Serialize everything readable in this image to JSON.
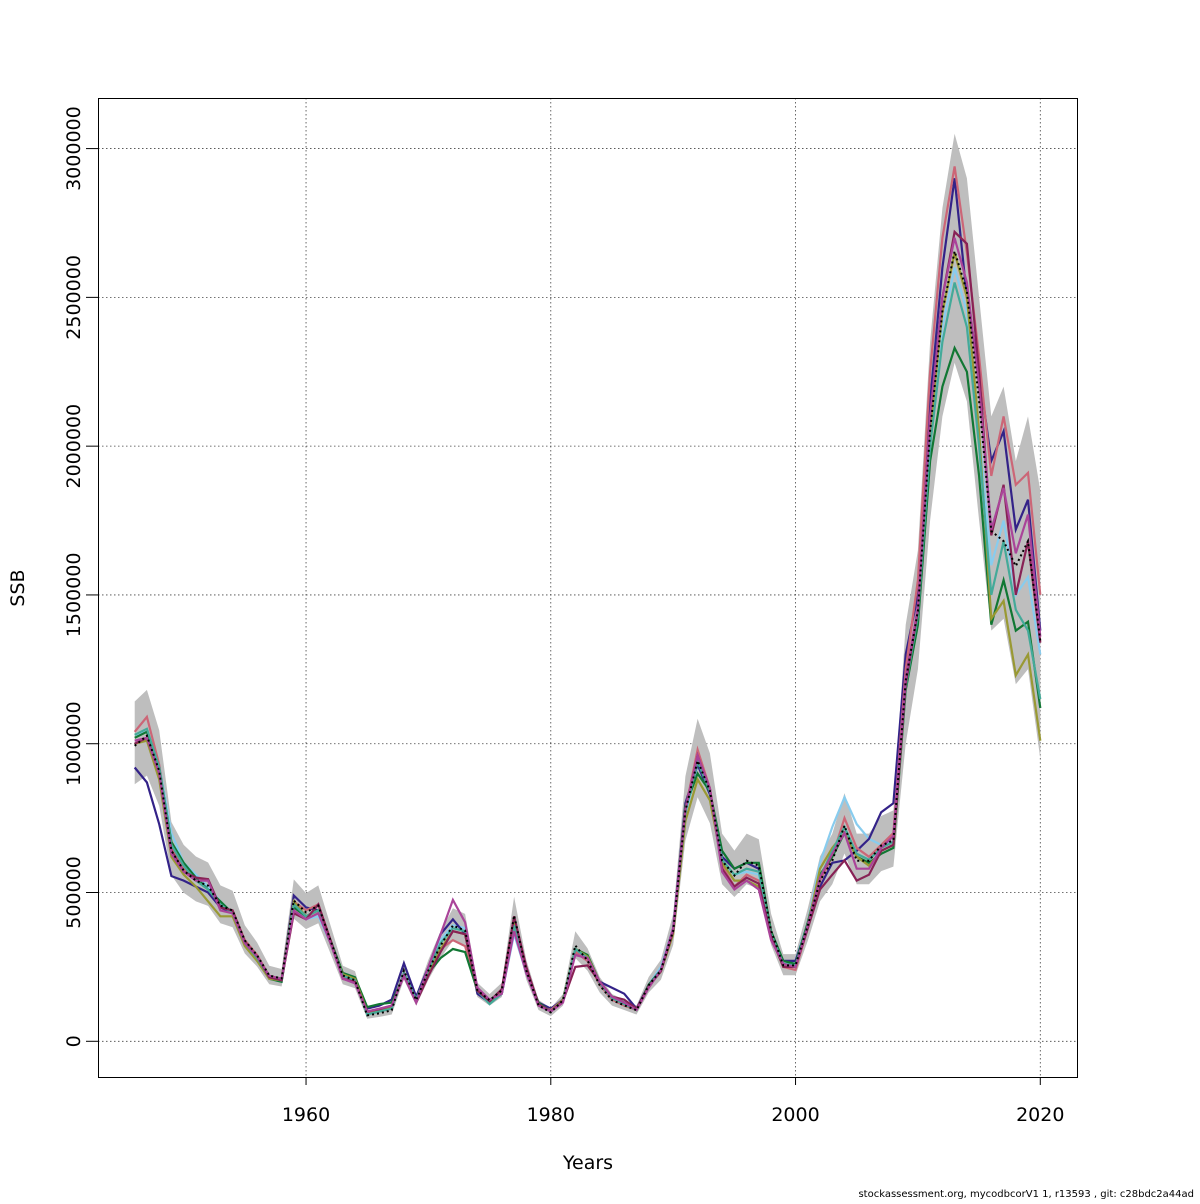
{
  "chart_data": {
    "type": "line",
    "title": "",
    "xlabel": "Years",
    "ylabel": "SSB",
    "xlim": [
      1943,
      2023
    ],
    "ylim": [
      -120000,
      3170000
    ],
    "x_ticks": [
      1960,
      1980,
      2000,
      2020
    ],
    "x_tick_labels": [
      "1960",
      "1980",
      "2000",
      "2020"
    ],
    "y_ticks": [
      0,
      500000,
      1000000,
      1500000,
      2000000,
      2500000,
      3000000
    ],
    "y_tick_labels": [
      "0",
      "500000",
      "1000000",
      "1500000",
      "2000000",
      "2500000",
      "3000000"
    ],
    "grid": true,
    "ci_color": "#bebebe",
    "x_start": 1946,
    "x_end": 2020,
    "main": {
      "color": "#000000",
      "style": "dotted",
      "values": [
        993000,
        1027000,
        909000,
        641000,
        574000,
        540000,
        523000,
        456000,
        440000,
        339000,
        289000,
        221000,
        211000,
        473000,
        433000,
        456000,
        339000,
        221000,
        205000,
        87000,
        94000,
        104000,
        238000,
        138000,
        238000,
        322000,
        389000,
        372000,
        171000,
        138000,
        171000,
        423000,
        238000,
        121000,
        97000,
        138000,
        322000,
        272000,
        188000,
        138000,
        121000,
        104000,
        188000,
        238000,
        372000,
        775000,
        943000,
        842000,
        607000,
        557000,
        607000,
        590000,
        372000,
        255000,
        255000,
        389000,
        540000,
        607000,
        725000,
        607000,
        607000,
        658000,
        675000,
        1212000,
        1446000,
        2051000,
        2453000,
        2655000,
        2520000,
        2151000,
        1715000,
        1681000,
        1597000,
        1681000,
        1346000
      ]
    },
    "ci_low": [
      864000,
      893000,
      791000,
      558000,
      499000,
      470000,
      455000,
      397000,
      383000,
      295000,
      251000,
      192000,
      184000,
      412000,
      377000,
      397000,
      295000,
      192000,
      178000,
      76000,
      82000,
      90000,
      207000,
      120000,
      207000,
      280000,
      338000,
      324000,
      149000,
      120000,
      149000,
      368000,
      207000,
      105000,
      84000,
      120000,
      280000,
      237000,
      164000,
      120000,
      105000,
      90000,
      164000,
      207000,
      324000,
      674000,
      820000,
      733000,
      528000,
      485000,
      528000,
      513000,
      324000,
      222000,
      222000,
      338000,
      470000,
      528000,
      631000,
      528000,
      528000,
      572000,
      587000,
      1000000,
      1250000,
      1750000,
      2100000,
      2280000,
      2150000,
      1750000,
      1380000,
      1420000,
      1200000,
      1250000,
      950000
    ],
    "ci_high": [
      1142000,
      1181000,
      1045000,
      737000,
      660000,
      621000,
      601000,
      524000,
      506000,
      390000,
      332000,
      254000,
      243000,
      544000,
      498000,
      524000,
      390000,
      254000,
      236000,
      100000,
      108000,
      120000,
      274000,
      159000,
      274000,
      370000,
      447000,
      428000,
      197000,
      159000,
      197000,
      486000,
      274000,
      139000,
      112000,
      159000,
      370000,
      313000,
      216000,
      159000,
      139000,
      120000,
      216000,
      274000,
      428000,
      891000,
      1084000,
      968000,
      698000,
      641000,
      698000,
      679000,
      428000,
      293000,
      293000,
      447000,
      621000,
      698000,
      834000,
      698000,
      698000,
      757000,
      776000,
      1400000,
      1650000,
      2350000,
      2800000,
      3050000,
      2900000,
      2500000,
      2100000,
      2200000,
      1950000,
      2100000,
      1850000
    ],
    "series": [
      {
        "color": "#88ccee",
        "values": [
          1030000,
          1040000,
          930000,
          700000,
          600000,
          560000,
          520000,
          470000,
          430000,
          340000,
          280000,
          210000,
          200000,
          460000,
          410000,
          420000,
          330000,
          220000,
          210000,
          95000,
          105000,
          115000,
          230000,
          140000,
          250000,
          340000,
          390000,
          380000,
          170000,
          130000,
          160000,
          360000,
          230000,
          130000,
          100000,
          140000,
          300000,
          280000,
          200000,
          150000,
          130000,
          105000,
          190000,
          250000,
          380000,
          760000,
          930000,
          830000,
          600000,
          560000,
          570000,
          560000,
          360000,
          260000,
          270000,
          400000,
          600000,
          720000,
          820000,
          730000,
          680000,
          660000,
          670000,
          1190000,
          1430000,
          2000000,
          2400000,
          2600000,
          2450000,
          2050000,
          1600000,
          1750000,
          1500000,
          1560000,
          1300000
        ]
      },
      {
        "color": "#332288",
        "values": [
          920000,
          870000,
          730000,
          555000,
          540000,
          520000,
          500000,
          450000,
          430000,
          330000,
          280000,
          215000,
          205000,
          490000,
          450000,
          440000,
          330000,
          220000,
          200000,
          110000,
          120000,
          140000,
          262000,
          150000,
          250000,
          360000,
          410000,
          360000,
          160000,
          130000,
          160000,
          380000,
          230000,
          130000,
          110000,
          140000,
          300000,
          270000,
          200000,
          180000,
          160000,
          110000,
          190000,
          240000,
          380000,
          800000,
          930000,
          830000,
          620000,
          580000,
          600000,
          580000,
          360000,
          270000,
          270000,
          390000,
          520000,
          600000,
          608000,
          640000,
          680000,
          770000,
          800000,
          1300000,
          1500000,
          2150000,
          2600000,
          2900000,
          2500000,
          2250000,
          1950000,
          2050000,
          1720000,
          1820000,
          1380000
        ]
      },
      {
        "color": "#cc6677",
        "values": [
          1040000,
          1090000,
          930000,
          650000,
          580000,
          550000,
          540000,
          450000,
          440000,
          340000,
          290000,
          220000,
          210000,
          470000,
          440000,
          460000,
          340000,
          215000,
          200000,
          95000,
          100000,
          110000,
          230000,
          140000,
          240000,
          310000,
          340000,
          320000,
          170000,
          130000,
          170000,
          380000,
          240000,
          120000,
          105000,
          140000,
          300000,
          270000,
          190000,
          140000,
          120000,
          105000,
          180000,
          240000,
          370000,
          780000,
          980000,
          850000,
          590000,
          520000,
          560000,
          540000,
          360000,
          250000,
          240000,
          380000,
          540000,
          620000,
          750000,
          650000,
          620000,
          660000,
          700000,
          1250000,
          1550000,
          2250000,
          2700000,
          2940000,
          2650000,
          2300000,
          1900000,
          2100000,
          1870000,
          1910000,
          1500000
        ]
      },
      {
        "color": "#117733",
        "values": [
          1020000,
          1040000,
          920000,
          670000,
          600000,
          550000,
          510000,
          470000,
          430000,
          330000,
          280000,
          210000,
          200000,
          450000,
          420000,
          440000,
          340000,
          230000,
          215000,
          115000,
          125000,
          130000,
          220000,
          140000,
          230000,
          280000,
          310000,
          300000,
          170000,
          130000,
          170000,
          400000,
          240000,
          130000,
          100000,
          140000,
          310000,
          290000,
          200000,
          150000,
          130000,
          105000,
          190000,
          240000,
          370000,
          790000,
          900000,
          840000,
          640000,
          580000,
          600000,
          600000,
          370000,
          270000,
          260000,
          400000,
          560000,
          620000,
          700000,
          620000,
          600000,
          630000,
          650000,
          1180000,
          1400000,
          1950000,
          2200000,
          2330000,
          2250000,
          1900000,
          1400000,
          1550000,
          1380000,
          1410000,
          1120000
        ]
      },
      {
        "color": "#999933",
        "values": [
          1000000,
          1010000,
          880000,
          620000,
          560000,
          520000,
          470000,
          420000,
          420000,
          320000,
          270000,
          210000,
          205000,
          470000,
          420000,
          440000,
          330000,
          225000,
          210000,
          100000,
          105000,
          115000,
          225000,
          135000,
          230000,
          310000,
          370000,
          360000,
          170000,
          135000,
          170000,
          410000,
          245000,
          125000,
          100000,
          140000,
          310000,
          285000,
          200000,
          150000,
          125000,
          105000,
          185000,
          235000,
          360000,
          740000,
          880000,
          810000,
          600000,
          540000,
          540000,
          520000,
          350000,
          250000,
          250000,
          390000,
          580000,
          650000,
          700000,
          620000,
          590000,
          640000,
          660000,
          1200000,
          1450000,
          2050000,
          2450000,
          2650000,
          2500000,
          2050000,
          1420000,
          1480000,
          1230000,
          1300000,
          1010000
        ]
      },
      {
        "color": "#44aa99",
        "values": [
          1030000,
          1050000,
          920000,
          660000,
          590000,
          540000,
          510000,
          460000,
          430000,
          330000,
          280000,
          215000,
          205000,
          460000,
          420000,
          440000,
          335000,
          220000,
          205000,
          90000,
          100000,
          110000,
          230000,
          140000,
          240000,
          330000,
          380000,
          370000,
          170000,
          125000,
          160000,
          390000,
          235000,
          125000,
          100000,
          135000,
          310000,
          280000,
          195000,
          145000,
          125000,
          105000,
          185000,
          240000,
          370000,
          770000,
          940000,
          840000,
          610000,
          560000,
          580000,
          570000,
          360000,
          260000,
          255000,
          390000,
          550000,
          640000,
          720000,
          630000,
          610000,
          650000,
          670000,
          1190000,
          1430000,
          2000000,
          2350000,
          2550000,
          2400000,
          2000000,
          1500000,
          1680000,
          1450000,
          1380000,
          1150000
        ]
      },
      {
        "color": "#882255",
        "values": [
          1000000,
          1020000,
          900000,
          640000,
          570000,
          550000,
          545000,
          450000,
          440000,
          335000,
          285000,
          215000,
          205000,
          430000,
          410000,
          460000,
          340000,
          210000,
          200000,
          100000,
          108000,
          120000,
          220000,
          130000,
          220000,
          300000,
          370000,
          360000,
          170000,
          135000,
          175000,
          420000,
          250000,
          125000,
          100000,
          135000,
          250000,
          255000,
          200000,
          150000,
          140000,
          110000,
          185000,
          235000,
          370000,
          780000,
          960000,
          850000,
          580000,
          520000,
          550000,
          530000,
          350000,
          250000,
          250000,
          380000,
          510000,
          560000,
          608000,
          540000,
          560000,
          640000,
          660000,
          1200000,
          1450000,
          2100000,
          2500000,
          2720000,
          2680000,
          2250000,
          1700000,
          1870000,
          1500000,
          1680000,
          1340000
        ]
      },
      {
        "color": "#aa4499",
        "values": [
          1010000,
          1020000,
          900000,
          630000,
          570000,
          540000,
          540000,
          440000,
          430000,
          330000,
          285000,
          220000,
          210000,
          440000,
          410000,
          430000,
          330000,
          210000,
          195000,
          100000,
          110000,
          120000,
          220000,
          130000,
          250000,
          360000,
          475000,
          400000,
          180000,
          140000,
          160000,
          370000,
          230000,
          120000,
          100000,
          130000,
          290000,
          280000,
          200000,
          150000,
          130000,
          105000,
          180000,
          240000,
          380000,
          780000,
          960000,
          850000,
          570000,
          510000,
          540000,
          510000,
          340000,
          260000,
          250000,
          390000,
          550000,
          630000,
          700000,
          580000,
          580000,
          650000,
          690000,
          1220000,
          1460000,
          2100000,
          2500000,
          2700000,
          2550000,
          2200000,
          1720000,
          1860000,
          1640000,
          1770000,
          1360000
        ]
      }
    ]
  },
  "footer": "stockassessment.org, mycodbcorV1  1, r13593 , git: c28bdc2a44ad"
}
